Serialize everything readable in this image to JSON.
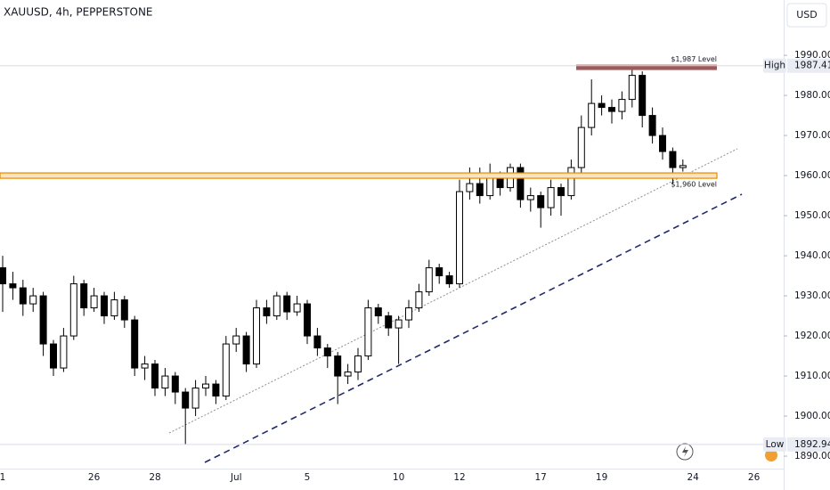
{
  "chart_data": {
    "type": "candlestick",
    "title": "XAUUSD, 4h, PEPPERSTONE",
    "currency": "USD",
    "categories": [
      "1",
      null,
      null,
      null,
      null,
      null,
      null,
      null,
      null,
      "26",
      null,
      null,
      null,
      null,
      null,
      "28",
      null,
      null,
      null,
      null,
      null,
      null,
      null,
      "Jul",
      null,
      null,
      null,
      null,
      null,
      null,
      "5",
      null,
      null,
      null,
      null,
      null,
      null,
      null,
      null,
      "10",
      null,
      null,
      null,
      null,
      null,
      "12",
      null,
      null,
      null,
      null,
      null,
      null,
      null,
      "17",
      null,
      null,
      null,
      null,
      null,
      "19",
      null,
      null,
      null,
      null,
      null,
      null,
      null,
      null,
      "24",
      null,
      null,
      null,
      null,
      null,
      "26"
    ],
    "open": [
      1937,
      1933,
      1932,
      1928,
      1930,
      1918,
      1912,
      1920,
      1933,
      1927,
      1930,
      1925,
      1929,
      1924,
      1912,
      1913,
      1907,
      1910,
      1906,
      1902,
      1907,
      1908,
      1905,
      1918,
      1920,
      1913,
      1927,
      1925,
      1930,
      1926,
      1928,
      1920,
      1917,
      1915,
      1910,
      1911,
      1915,
      1927,
      1925,
      1922,
      1924,
      1927,
      1931,
      1937,
      1935,
      1933,
      1956,
      1958,
      1955,
      1960,
      1957,
      1962,
      1954,
      1955,
      1952,
      1957,
      1955,
      1962,
      1972,
      1978,
      1977,
      1976,
      1979,
      1985,
      1975,
      1970,
      1966,
      1962,
      null,
      null,
      null,
      null,
      null,
      null,
      null
    ],
    "high": [
      1940,
      1936,
      1934,
      1932,
      1931,
      1919,
      1922,
      1935,
      1934,
      1932,
      1931,
      1931,
      1930,
      1925,
      1915,
      1914,
      1912,
      1911,
      1907,
      1909,
      1910,
      1909,
      1920,
      1922,
      1921,
      1929,
      1929,
      1931,
      1931,
      1930,
      1929,
      1922,
      1918,
      1916,
      1913,
      1917,
      1929,
      1928,
      1926,
      1925,
      1929,
      1933,
      1939,
      1938,
      1936,
      1959,
      1962,
      1962,
      1963,
      1961,
      1963,
      1963,
      1957,
      1956,
      1959,
      1958,
      1964,
      1975,
      1984,
      1980,
      1979,
      1981,
      1987.41,
      1986,
      1977,
      1972,
      1967,
      1964,
      null,
      null,
      null,
      null,
      null,
      null,
      null
    ],
    "low": [
      1926,
      1929,
      1925,
      1926,
      1915,
      1910,
      1911,
      1919,
      1925,
      1926,
      1923,
      1924,
      1922,
      1910,
      1909,
      1905,
      1905,
      1903,
      1893,
      1900,
      1905,
      1903,
      1904,
      1916,
      1911,
      1912,
      1923,
      1924,
      1924,
      1925,
      1918,
      1915,
      1912,
      1903,
      1908,
      1909,
      1914,
      1923,
      1920,
      1913,
      1922,
      1926,
      1930,
      1933,
      1932,
      1932,
      1954,
      1953,
      1954,
      1955,
      1956,
      1952,
      1951,
      1947,
      1950,
      1950,
      1954,
      1960,
      1970,
      1975,
      1973,
      1974,
      1977,
      1972,
      1968,
      1964,
      1958,
      1961,
      null,
      null,
      null,
      null,
      null,
      null,
      null
    ],
    "close": [
      1933,
      1932,
      1928,
      1930,
      1918,
      1912,
      1920,
      1933,
      1927,
      1930,
      1925,
      1929,
      1924,
      1912,
      1913,
      1907,
      1910,
      1906,
      1902,
      1907,
      1908,
      1905,
      1918,
      1920,
      1913,
      1927,
      1925,
      1930,
      1926,
      1928,
      1920,
      1917,
      1915,
      1910,
      1911,
      1915,
      1927,
      1925,
      1922,
      1924,
      1927,
      1931,
      1937,
      1935,
      1933,
      1956,
      1958,
      1955,
      1960,
      1957,
      1962,
      1954,
      1955,
      1952,
      1957,
      1955,
      1962,
      1972,
      1978,
      1977,
      1976,
      1979,
      1985,
      1975,
      1970,
      1966,
      1962,
      1962.5,
      null,
      null,
      null,
      null,
      null,
      null,
      null
    ],
    "up_color": "#ffffff",
    "down_color": "#000000",
    "ylim": [
      1886.9,
      2003.8
    ],
    "yticks": [
      {
        "value": 1890,
        "label": "1890.00"
      },
      {
        "value": 1900,
        "label": "1900.00"
      },
      {
        "value": 1910,
        "label": "1910.00"
      },
      {
        "value": 1920,
        "label": "1920.00"
      },
      {
        "value": 1930,
        "label": "1930.00"
      },
      {
        "value": 1940,
        "label": "1940.00"
      },
      {
        "value": 1950,
        "label": "1950.00"
      },
      {
        "value": 1960,
        "label": "1960.00"
      },
      {
        "value": 1970,
        "label": "1970.00"
      },
      {
        "value": 1980,
        "label": "1980.00"
      },
      {
        "value": 1990,
        "label": "1990.00"
      }
    ],
    "high_marker": {
      "label": "High",
      "value": 1987.41
    },
    "low_marker": {
      "label": "Low",
      "value": 1892.94
    },
    "levels": [
      {
        "label": "$1,987 Level",
        "value": 1987,
        "color": "#9e5a5a"
      },
      {
        "label": "$1,960 Level",
        "value": 1960,
        "color": "#e68a00"
      }
    ]
  }
}
